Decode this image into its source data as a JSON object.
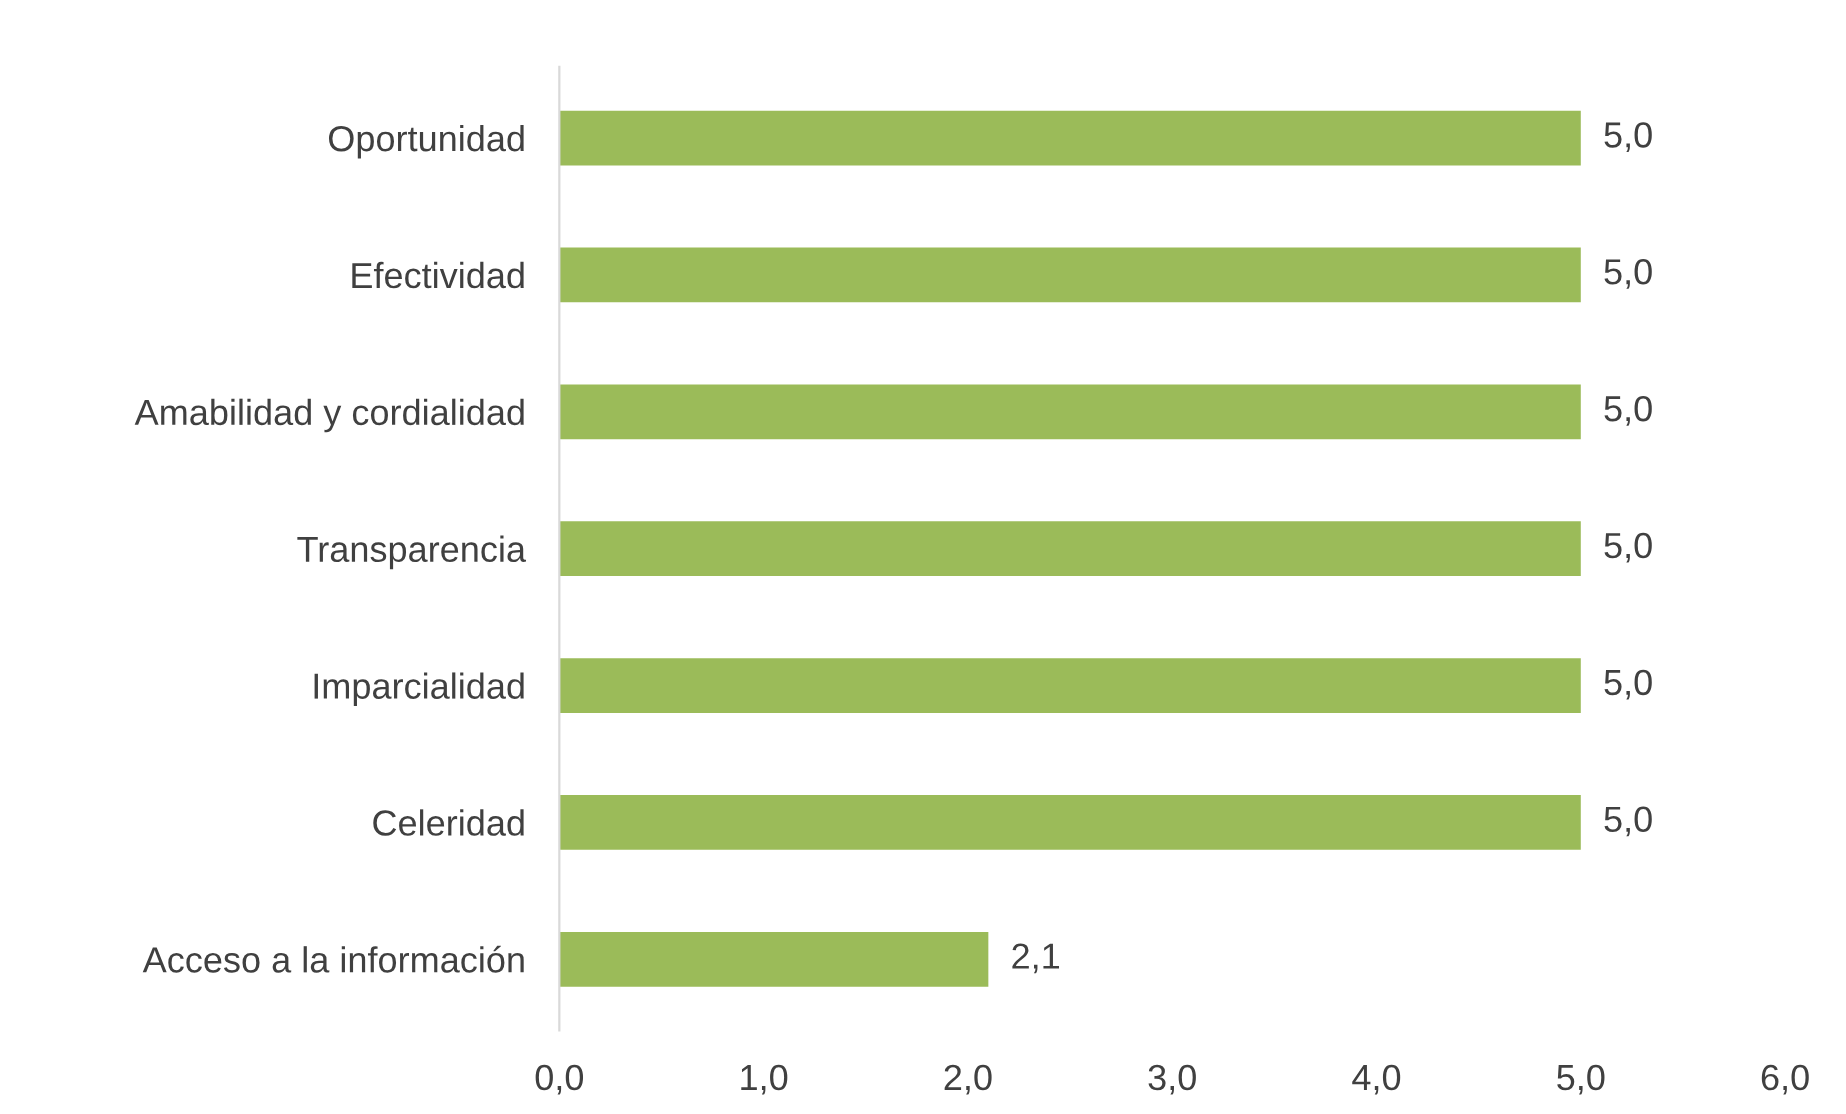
{
  "chart_data": {
    "type": "bar",
    "orientation": "horizontal",
    "categories": [
      "Oportunidad",
      "Efectividad",
      "Amabilidad y cordialidad",
      "Transparencia",
      "Imparcialidad",
      "Celeridad",
      "Acceso a la información"
    ],
    "values": [
      5.0,
      5.0,
      5.0,
      5.0,
      5.0,
      5.0,
      2.1
    ],
    "value_labels": [
      "5,0",
      "5,0",
      "5,0",
      "5,0",
      "5,0",
      "5,0",
      "2,1"
    ],
    "color": "#9bbb59",
    "xlim": [
      0,
      6
    ],
    "xticks": [
      {
        "value": 0,
        "label": "0,0"
      },
      {
        "value": 1,
        "label": "1,0"
      },
      {
        "value": 2,
        "label": "2,0"
      },
      {
        "value": 3,
        "label": "3,0"
      },
      {
        "value": 4,
        "label": "4,0"
      },
      {
        "value": 5,
        "label": "5,0"
      },
      {
        "value": 6,
        "label": "6,0"
      }
    ],
    "grid": false,
    "legend": false
  }
}
